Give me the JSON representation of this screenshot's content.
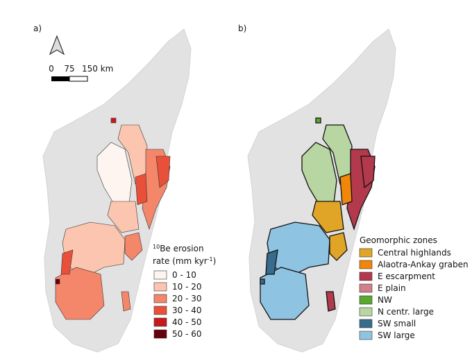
{
  "panels": [
    {
      "label": "a)",
      "scale_bar": {
        "labels": [
          "0",
          "75",
          "150 km"
        ]
      },
      "legend": {
        "title": {
          "sup": "10",
          "line1": "Be erosion",
          "line2": "rate (mm kyr",
          "sup2": "-1",
          "close": ")"
        },
        "items": [
          {
            "label": "0 - 10",
            "color": "#fff5f0"
          },
          {
            "label": "10 - 20",
            "color": "#fcc5b0"
          },
          {
            "label": "20 - 30",
            "color": "#f4866a"
          },
          {
            "label": "30 - 40",
            "color": "#e8503a"
          },
          {
            "label": "40 - 50",
            "color": "#c8171d"
          },
          {
            "label": "50 - 60",
            "color": "#67000d"
          }
        ]
      }
    },
    {
      "label": "b)",
      "legend": {
        "title": "Geomorphic zones",
        "items": [
          {
            "label": "Central highlands",
            "color": "#e0a526"
          },
          {
            "label": "Alaotra-Ankay graben",
            "color": "#f0860a"
          },
          {
            "label": "E escarpment",
            "color": "#b3394c"
          },
          {
            "label": "E plain",
            "color": "#d08088"
          },
          {
            "label": "NW",
            "color": "#5aa832"
          },
          {
            "label": "N centr. large",
            "color": "#b8d6a2"
          },
          {
            "label": "SW small",
            "color": "#376c8c"
          },
          {
            "label": "SW large",
            "color": "#8fc3e2"
          }
        ]
      }
    }
  ]
}
